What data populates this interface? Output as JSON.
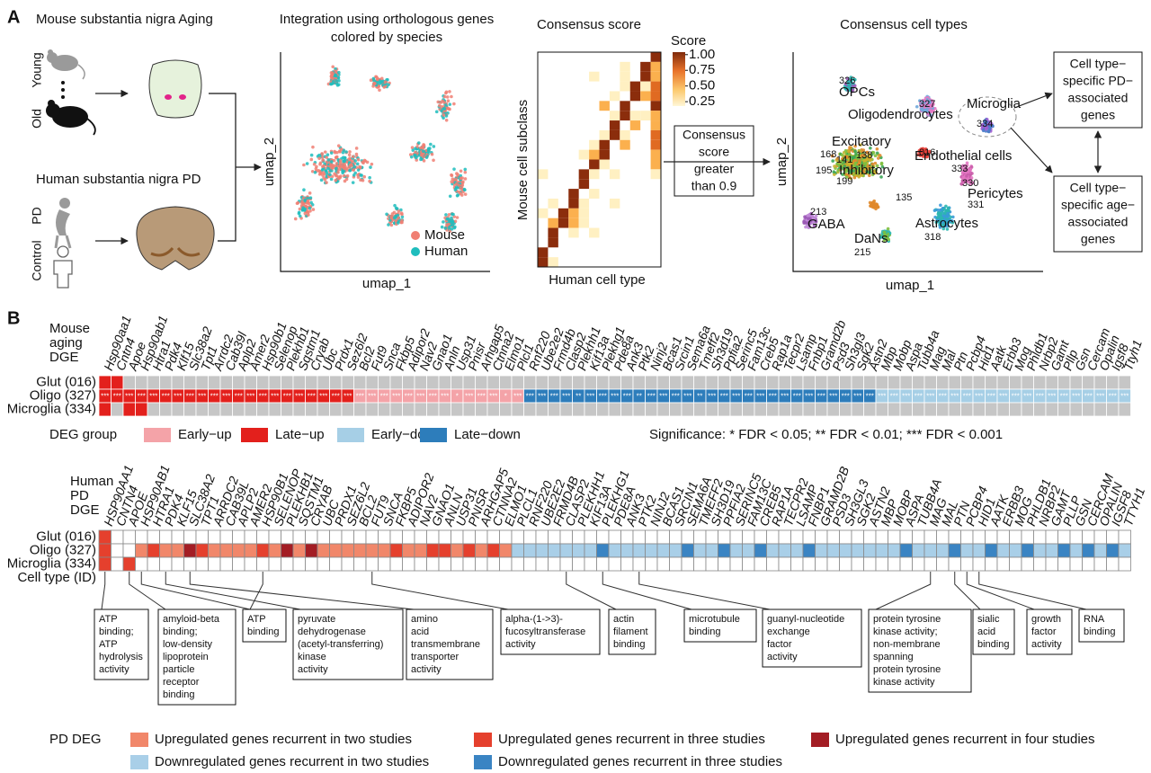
{
  "panel_a": {
    "label": "A",
    "mouse_title": "Mouse substantia nigra Aging",
    "mouse_groups": [
      "Young",
      "Old"
    ],
    "human_title": "Human substantia nigra PD",
    "human_groups": [
      "PD",
      "Control"
    ],
    "integration": {
      "title": [
        "Integration using orthologous genes",
        "colored by species"
      ],
      "x_label": "umap_1",
      "y_label": "umap_2",
      "legend": [
        {
          "label": "Mouse",
          "color": "#f07f73"
        },
        {
          "label": "Human",
          "color": "#1fbdbd"
        }
      ]
    },
    "consensus": {
      "title": "Consensus score",
      "x_label": "Human cell type",
      "y_label": "Mouse cell subclass",
      "colorbar": {
        "title": "Score",
        "ticks": [
          {
            "value": 1,
            "label": "1.00"
          },
          {
            "value": 0.75,
            "label": "0.75"
          },
          {
            "value": 0.5,
            "label": "0.50"
          },
          {
            "value": 0.25,
            "label": "0.25"
          }
        ]
      }
    },
    "threshold_box": [
      "Consensus",
      "score",
      "greater",
      "than 0.9"
    ],
    "cell_types": {
      "title": "Consensus cell types",
      "x_label": "umap_1",
      "y_label": "umap_2",
      "labels": [
        "326",
        "OPCs",
        "327",
        "Oligodendrocytes",
        "Microglia",
        "334",
        "Excitatory",
        "016",
        "168",
        "141",
        "138",
        "195",
        "Inhibitory",
        "199",
        "Endothelial cells",
        "333",
        "330",
        "Pericytes",
        "331",
        "135",
        "213",
        "GABA",
        "Astrocytes",
        "DaNs",
        "318",
        "215"
      ]
    },
    "outputs": [
      [
        "Cell type−",
        "specific PD−",
        "associated",
        "genes"
      ],
      [
        "Cell type−",
        "specific age−",
        "associated",
        "genes"
      ]
    ]
  },
  "panel_b": {
    "label": "B",
    "mouse": {
      "title": [
        "Mouse",
        "aging",
        "DGE"
      ],
      "genes": [
        "Hsp90aa1",
        "Cntn4",
        "Apoe",
        "Hsp90ab1",
        "Htra1",
        "Pdk4",
        "Klf15",
        "Slc38a2",
        "Tpt1",
        "Arrdc2",
        "Cab39l",
        "Aplp2",
        "Amer2",
        "Hsp90b1",
        "Selenop",
        "Plekhb1",
        "Sqstm1",
        "Cryab",
        "Ubc",
        "Prdx1",
        "Sez6l2",
        "Bcl2",
        "Fut9",
        "Snca",
        "Fkbp5",
        "Adipor2",
        "Nav2",
        "Gnao1",
        "Anln",
        "Usp31",
        "Pnisr",
        "Arhgap5",
        "Ctnna2",
        "Elmo1",
        "Plcl1",
        "Rnf220",
        "Ube2e2",
        "Frmd4b",
        "Clasp2",
        "Plekhh1",
        "Kif13a",
        "Plekhg1",
        "Pde8a",
        "Ank3",
        "Ptk2",
        "Ninj2",
        "Bcas1",
        "Srcin1",
        "Sema6a",
        "Tmeff2",
        "Sh3d19",
        "Ppfia2",
        "Serinc5",
        "Fam13c",
        "Creb5",
        "Rap1a",
        "Tecpr2",
        "Lsamp",
        "Fnbp1",
        "Gramd2b",
        "Psd3",
        "Sh3gl3",
        "Sgk2",
        "Astn2",
        "Mbp",
        "Mobp",
        "Aspa",
        "Tubb4a",
        "Mag",
        "Mal",
        "Ptn",
        "Pcbp4",
        "Hid1",
        "Aatk",
        "Erbb3",
        "Mog",
        "Phldb1",
        "Nrbp2",
        "Gamt",
        "Pllp",
        "Gsn",
        "Cercam",
        "Opalin",
        "Igsf8",
        "Ttyh1"
      ],
      "rows": [
        {
          "label": "Glut (016)",
          "cells": [
            1,
            1,
            null,
            null,
            null,
            null,
            null,
            null,
            null,
            null,
            null,
            null,
            null,
            null,
            null,
            null,
            null,
            null,
            null,
            null,
            null,
            null,
            null,
            null,
            null,
            null,
            null,
            null,
            null,
            null,
            null,
            null,
            null,
            null,
            null,
            null,
            null,
            null,
            null,
            null,
            null,
            null,
            null,
            null,
            null,
            null,
            null,
            null,
            null,
            null,
            null,
            null,
            null,
            null,
            null,
            null,
            null,
            null,
            null,
            null,
            null,
            null,
            null,
            null,
            null,
            null,
            null,
            null,
            null,
            null,
            null,
            null,
            null,
            null,
            null,
            null,
            null,
            null,
            null,
            null,
            null,
            null,
            null,
            null,
            null
          ]
        },
        {
          "label": "Oligo (327)",
          "cells": [
            1,
            1,
            1,
            1,
            1,
            1,
            1,
            1,
            1,
            1,
            1,
            1,
            1,
            1,
            1,
            1,
            1,
            1,
            1,
            1,
            1,
            0,
            0,
            0,
            0,
            0,
            0,
            0,
            0,
            0,
            0,
            0,
            0,
            0,
            0,
            3,
            3,
            3,
            3,
            3,
            3,
            3,
            3,
            3,
            3,
            3,
            3,
            3,
            3,
            3,
            3,
            3,
            3,
            3,
            3,
            3,
            3,
            3,
            3,
            3,
            3,
            3,
            3,
            3,
            2,
            2,
            2,
            2,
            2,
            2,
            2,
            2,
            2,
            2,
            2,
            2,
            2,
            2,
            2,
            2,
            2,
            2,
            2,
            2,
            2
          ],
          "stars": [
            "***",
            "***",
            "***",
            "***",
            "***",
            "***",
            "***",
            "***",
            "***",
            "***",
            "***",
            "***",
            "***",
            "***",
            "***",
            "***",
            "***",
            "***",
            "***",
            "***",
            "***",
            "***",
            "***",
            "***",
            "***",
            "***",
            "***",
            "***",
            "***",
            "*",
            "***",
            "***",
            "***",
            "*",
            "***",
            "***",
            "***",
            "***",
            "***",
            "**",
            "***",
            "***",
            "***",
            "***",
            "**",
            "***",
            "***",
            "***",
            "***",
            "**",
            "***",
            "***",
            "***",
            "***",
            "***",
            "***",
            "***",
            "***",
            "***",
            "***",
            "***",
            "***",
            "***",
            "***",
            "***",
            "***",
            "***",
            "***",
            "***",
            "***",
            "***",
            "***",
            "***",
            "***",
            "***",
            "***",
            "***",
            "***",
            "***",
            "***",
            "***",
            "***",
            "***",
            "***",
            "***"
          ]
        },
        {
          "label": "Microglia (334)",
          "cells": [
            1,
            null,
            1,
            1,
            null,
            null,
            null,
            null,
            null,
            null,
            null,
            null,
            null,
            null,
            null,
            null,
            null,
            null,
            null,
            null,
            null,
            null,
            null,
            null,
            null,
            null,
            null,
            null,
            null,
            null,
            null,
            null,
            null,
            null,
            null,
            null,
            null,
            null,
            null,
            null,
            null,
            null,
            null,
            null,
            null,
            null,
            null,
            null,
            null,
            null,
            null,
            null,
            null,
            null,
            null,
            null,
            null,
            null,
            null,
            null,
            null,
            null,
            null,
            null,
            null,
            null,
            null,
            null,
            null,
            null,
            null,
            null,
            null,
            null,
            null,
            null,
            null,
            null,
            null,
            null,
            null,
            null,
            null,
            null,
            null
          ]
        }
      ]
    },
    "deg_legend": {
      "title": "DEG group",
      "groups": [
        {
          "label": "Early−up",
          "color": "#f4a3a8"
        },
        {
          "label": "Late−up",
          "color": "#e3201c"
        },
        {
          "label": "Early−down",
          "color": "#a6cfe6"
        },
        {
          "label": "Late−down",
          "color": "#2d7dbb"
        }
      ]
    },
    "significance": "Significance: * FDR < 0.05; ** FDR < 0.01; *** FDR < 0.001",
    "human": {
      "title": [
        "Human",
        "PD",
        "DGE"
      ],
      "row_axis_label": "Cell type (ID)",
      "genes": [
        "HSP90AA1",
        "CNTN4",
        "APOE",
        "HSP90AB1",
        "HTRA1",
        "PDK4",
        "KLF15",
        "SLC38A2",
        "TPT1",
        "ARRDC2",
        "CAB39L",
        "APLP2",
        "AMER2",
        "HSP90B1",
        "SELENOP",
        "PLEKHB1",
        "SQSTM1",
        "CRYAB",
        "UBC",
        "PRDX1",
        "SEZ6L2",
        "BCL2",
        "FUT9",
        "SNCA",
        "FKBP5",
        "ADIPOR2",
        "NAV2",
        "GNAO1",
        "ANLN",
        "USP31",
        "PNISR",
        "ARHGAP5",
        "CTNNA2",
        "ELMO1",
        "PLCL1",
        "RNF220",
        "UBE2E2",
        "FRMD4B",
        "CLASP2",
        "PLEKHH1",
        "KIF13A",
        "PLEKHG1",
        "PDE8A",
        "ANK3",
        "PTK2",
        "NINJ2",
        "BCAS1",
        "SRCIN1",
        "SEMA6A",
        "TMEFF2",
        "SH3D19",
        "PPFIA2",
        "SERINC5",
        "FAM13C",
        "CREB5",
        "RAP1A",
        "TECPR2",
        "LSAMP",
        "FNBP1",
        "GRAMD2B",
        "PSD3",
        "SH3GL3",
        "SGK2",
        "ASTN2",
        "MBP",
        "MOBP",
        "ASPA",
        "TUBB4A",
        "MAG",
        "MAL",
        "PTN",
        "PCBP4",
        "HID1",
        "AATK",
        "ERBB3",
        "MOG",
        "PHLDB1",
        "NRBP2",
        "GAMT",
        "PLLP",
        "GSN",
        "CERCAM",
        "OPALIN",
        "IGSF8",
        "TTYH1"
      ],
      "rows": [
        {
          "label": "Glut (016)",
          "cells": [
            1,
            null,
            null,
            null,
            null,
            null,
            null,
            null,
            null,
            null,
            null,
            null,
            null,
            null,
            null,
            null,
            null,
            null,
            null,
            null,
            null,
            null,
            null,
            null,
            null,
            null,
            null,
            null,
            null,
            null,
            null,
            null,
            null,
            null,
            null,
            null,
            null,
            null,
            null,
            null,
            null,
            null,
            null,
            null,
            null,
            null,
            null,
            null,
            null,
            null,
            null,
            null,
            null,
            null,
            null,
            null,
            null,
            null,
            null,
            null,
            null,
            null,
            null,
            null,
            null,
            null,
            null,
            null,
            null,
            null,
            null,
            null,
            null,
            null,
            null,
            null,
            null,
            null,
            null,
            null,
            null,
            null,
            null,
            null,
            null
          ]
        },
        {
          "label": "Oligo (327)",
          "cells": [
            1,
            null,
            null,
            0,
            1,
            0,
            0,
            2,
            1,
            0,
            0,
            0,
            0,
            1,
            0,
            2,
            0,
            2,
            0,
            0,
            0,
            0,
            0,
            0,
            1,
            0,
            0,
            1,
            1,
            0,
            1,
            0,
            1,
            0,
            3,
            3,
            3,
            3,
            3,
            3,
            3,
            4,
            3,
            3,
            3,
            3,
            3,
            3,
            4,
            3,
            3,
            4,
            3,
            3,
            4,
            3,
            3,
            3,
            4,
            3,
            3,
            3,
            3,
            3,
            3,
            3,
            4,
            3,
            3,
            3,
            4,
            3,
            3,
            4,
            3,
            3,
            4,
            3,
            3,
            4,
            3,
            4,
            3,
            4,
            3
          ]
        },
        {
          "label": "Microglia (334)",
          "cells": [
            1,
            null,
            1,
            null,
            null,
            null,
            null,
            null,
            null,
            null,
            null,
            null,
            null,
            null,
            null,
            null,
            null,
            null,
            null,
            null,
            null,
            null,
            null,
            null,
            null,
            null,
            null,
            null,
            null,
            null,
            null,
            null,
            null,
            null,
            null,
            null,
            null,
            null,
            null,
            null,
            null,
            null,
            null,
            null,
            null,
            null,
            null,
            null,
            null,
            null,
            null,
            null,
            null,
            null,
            null,
            null,
            null,
            null,
            null,
            null,
            null,
            null,
            null,
            null,
            null,
            null,
            null,
            null,
            null,
            null,
            null,
            null,
            null,
            null,
            null,
            null,
            null,
            null,
            null,
            null,
            null,
            null,
            null,
            null,
            null
          ]
        }
      ]
    },
    "annotations": [
      [
        "ATP",
        "binding;",
        "ATP",
        "hydrolysis",
        "activity"
      ],
      [
        "amyloid-beta",
        "binding;",
        "low-density",
        "lipoprotein",
        "particle",
        "receptor",
        "binding"
      ],
      [
        "ATP",
        "binding"
      ],
      [
        "pyruvate",
        "dehydrogenase",
        "(acetyl-transferring)",
        "kinase",
        "activity"
      ],
      [
        "amino",
        "acid",
        "transmembrane",
        "transporter",
        "activity"
      ],
      [
        "alpha-(1->3)-",
        "fucosyltransferase",
        "activity"
      ],
      [
        "actin",
        "filament",
        "binding"
      ],
      [
        "microtubule",
        "binding"
      ],
      [
        "guanyl-nucleotide",
        "exchange",
        "factor",
        "activity"
      ],
      [
        "protein tyrosine",
        "kinase activity;",
        "non-membrane",
        "spanning",
        "protein tyrosine",
        "kinase activity"
      ],
      [
        "sialic",
        "acid",
        "binding"
      ],
      [
        "growth",
        "factor",
        "activity"
      ],
      [
        "RNA",
        "binding"
      ]
    ],
    "pd_legend": {
      "title": "PD DEG",
      "groups": [
        {
          "label": "Upregulated genes recurrent in two studies",
          "color": "#f1876a"
        },
        {
          "label": "Upregulated genes recurrent in three studies",
          "color": "#e5402d"
        },
        {
          "label": "Upregulated genes recurrent in four studies",
          "color": "#a31d24"
        },
        {
          "label": "Downregulated genes recurrent in two studies",
          "color": "#a9cfe8"
        },
        {
          "label": "Downregulated genes recurrent in three studies",
          "color": "#3a84c3"
        }
      ]
    }
  }
}
